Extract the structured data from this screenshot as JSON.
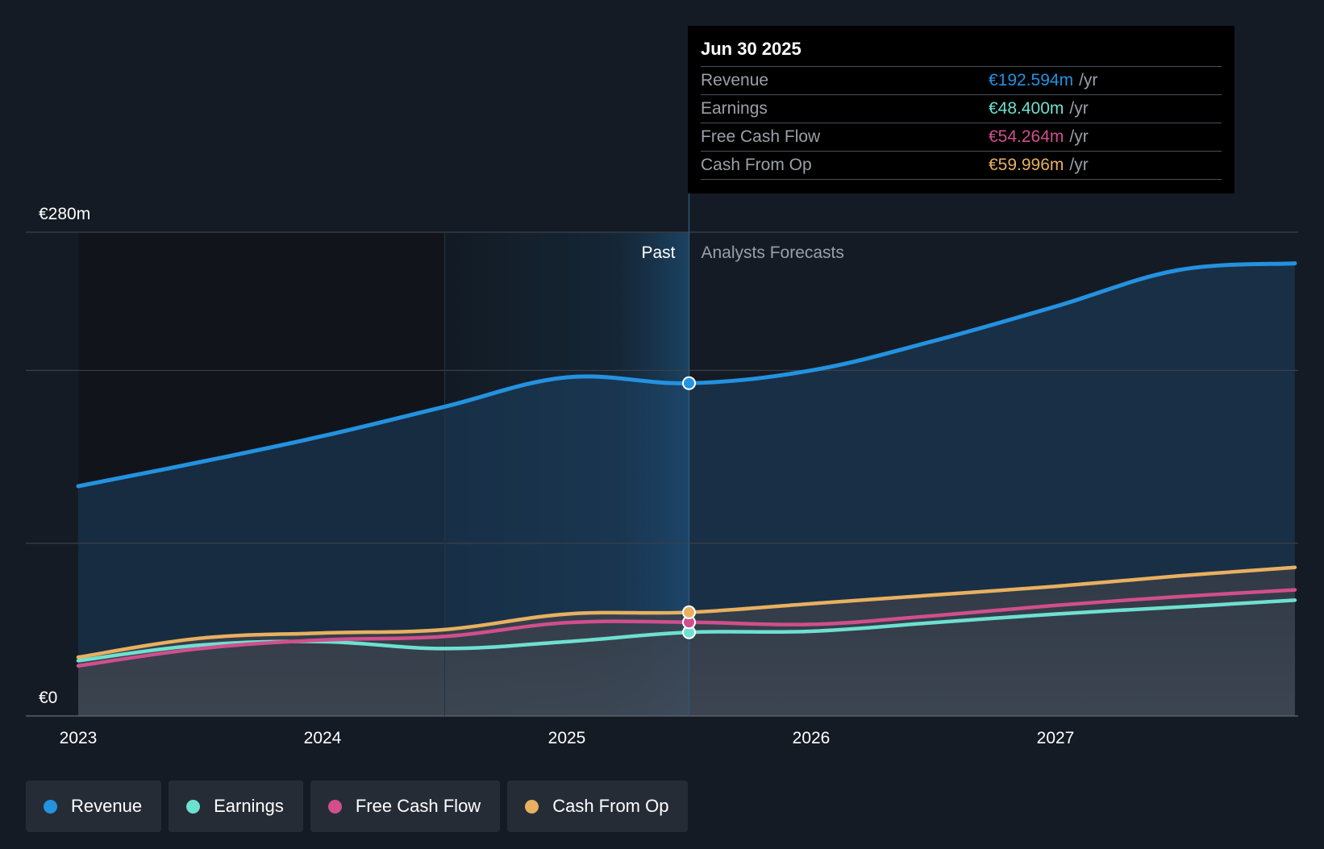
{
  "chart_data": {
    "type": "area",
    "title": "",
    "x_ticks": [
      "2023",
      "2024",
      "2025",
      "2026",
      "2027"
    ],
    "y_ticks": [
      {
        "label": "€0",
        "value": 0
      },
      {
        "label": "€280m",
        "value": 280
      }
    ],
    "ylim": [
      0,
      280
    ],
    "xlim": [
      2022.98,
      2027.98
    ],
    "divider_x": 2025.5,
    "past_label": "Past",
    "forecast_label": "Analysts Forecasts",
    "series": [
      {
        "name": "Revenue",
        "color": "#2392e0",
        "x": [
          2023.0,
          2023.5,
          2024.0,
          2024.5,
          2025.0,
          2025.5,
          2026.0,
          2026.5,
          2027.0,
          2027.5,
          2027.98
        ],
        "values": [
          133,
          147,
          162,
          179,
          196,
          192.594,
          200,
          217,
          237,
          258,
          262
        ]
      },
      {
        "name": "Earnings",
        "color": "#6ee0d0",
        "x": [
          2023.0,
          2023.5,
          2024.0,
          2024.5,
          2025.0,
          2025.5,
          2026.0,
          2026.5,
          2027.0,
          2027.5,
          2027.98
        ],
        "values": [
          32,
          41,
          43,
          39,
          43,
          48.4,
          49,
          54,
          59,
          63,
          67
        ]
      },
      {
        "name": "Free Cash Flow",
        "color": "#d04f8c",
        "x": [
          2023.0,
          2023.5,
          2024.0,
          2024.5,
          2025.0,
          2025.5,
          2026.0,
          2026.5,
          2027.0,
          2027.5,
          2027.98
        ],
        "values": [
          29,
          39,
          44,
          46,
          54,
          54.264,
          53,
          58,
          64,
          69,
          73
        ]
      },
      {
        "name": "Cash From Op",
        "color": "#e8b060",
        "x": [
          2023.0,
          2023.5,
          2024.0,
          2024.5,
          2025.0,
          2025.5,
          2026.0,
          2026.5,
          2027.0,
          2027.5,
          2027.98
        ],
        "values": [
          34,
          45,
          48,
          50,
          59,
          59.996,
          65,
          70,
          75,
          81,
          86
        ]
      }
    ]
  },
  "tooltip": {
    "date": "Jun 30 2025",
    "rows": [
      {
        "label": "Revenue",
        "value": "€192.594m",
        "unit": "/yr",
        "color": "#2392e0"
      },
      {
        "label": "Earnings",
        "value": "€48.400m",
        "unit": "/yr",
        "color": "#6ee0d0"
      },
      {
        "label": "Free Cash Flow",
        "value": "€54.264m",
        "unit": "/yr",
        "color": "#d04f8c"
      },
      {
        "label": "Cash From Op",
        "value": "€59.996m",
        "unit": "/yr",
        "color": "#e8b060"
      }
    ]
  },
  "legend": [
    {
      "label": "Revenue",
      "color": "#2392e0"
    },
    {
      "label": "Earnings",
      "color": "#6ee0d0"
    },
    {
      "label": "Free Cash Flow",
      "color": "#d04f8c"
    },
    {
      "label": "Cash From Op",
      "color": "#e8b060"
    }
  ]
}
